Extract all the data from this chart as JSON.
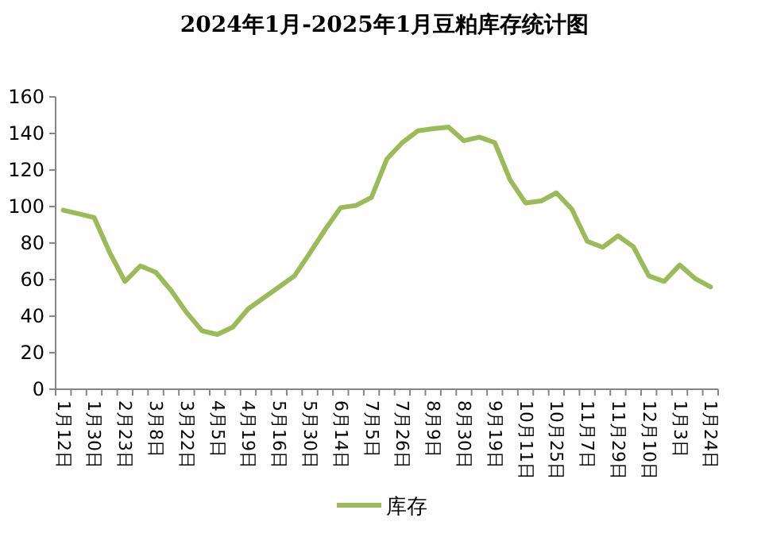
{
  "chart_data": {
    "type": "line",
    "title": "2024年1月-2025年1月豆粕库存统计图",
    "categories": [
      "1月12日",
      null,
      "1月30日",
      null,
      "2月23日",
      null,
      "3月8日",
      null,
      "3月22日",
      null,
      "4月5日",
      null,
      "4月19日",
      null,
      "5月16日",
      null,
      "5月30日",
      null,
      "6月14日",
      null,
      "7月5日",
      null,
      "7月26日",
      null,
      "8月9日",
      null,
      "8月30日",
      null,
      "9月19日",
      null,
      "10月11日",
      null,
      "10月25日",
      null,
      "11月7日",
      null,
      "11月29日",
      null,
      "12月10日",
      null,
      "1月3日",
      null,
      "1月24日"
    ],
    "series": [
      {
        "name": "库存",
        "color": "#9bbb59",
        "values": [
          98,
          96,
          94,
          75,
          59,
          67.5,
          64,
          54,
          42,
          32,
          30,
          34,
          44,
          50,
          56,
          62,
          74.5,
          87.5,
          99.4,
          100.6,
          105,
          126,
          135,
          141.4,
          142.6,
          143.5,
          136,
          138,
          135,
          114.5,
          102,
          103,
          107.5,
          98.6,
          81,
          77.7,
          84,
          78,
          62,
          59,
          68,
          60.6,
          56
        ]
      }
    ],
    "ylim": [
      0,
      160
    ],
    "yticks": [
      0,
      20,
      40,
      60,
      80,
      100,
      120,
      140,
      160
    ],
    "legend": "bottom"
  }
}
